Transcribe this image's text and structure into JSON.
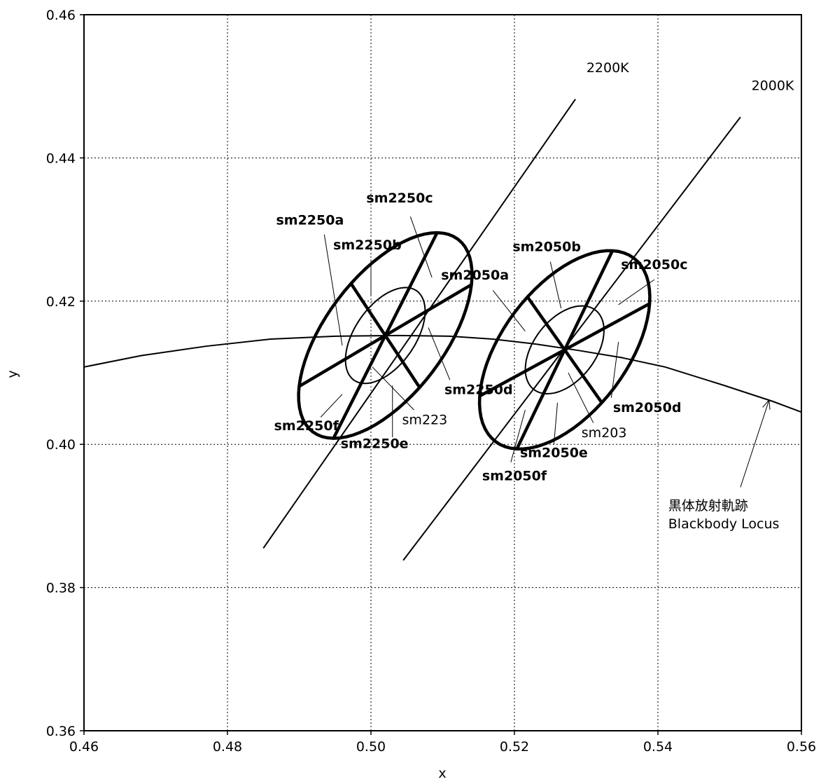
{
  "chart_data": {
    "type": "line",
    "xlabel": "x",
    "ylabel": "y",
    "xlim": [
      0.46,
      0.56
    ],
    "ylim": [
      0.36,
      0.46
    ],
    "grid": true,
    "x_ticks": [
      "0.46",
      "0.48",
      "0.50",
      "0.52",
      "0.54",
      "0.56"
    ],
    "y_ticks": [
      "0.36",
      "0.38",
      "0.40",
      "0.42",
      "0.44",
      "0.46"
    ],
    "blackbody_locus": {
      "x": [
        0.46,
        0.468,
        0.477,
        0.486,
        0.495,
        0.504,
        0.511,
        0.517,
        0.523,
        0.529,
        0.535,
        0.541,
        0.549,
        0.556,
        0.56
      ],
      "y": [
        0.4108,
        0.4124,
        0.4137,
        0.4147,
        0.4151,
        0.4152,
        0.4151,
        0.4147,
        0.414,
        0.4131,
        0.4121,
        0.4108,
        0.4083,
        0.406,
        0.4045
      ]
    },
    "isotherms": [
      {
        "name": "2200K",
        "x1": 0.485,
        "y1": 0.3855,
        "x2": 0.5285,
        "y2": 0.4482
      },
      {
        "name": "2000K",
        "x1": 0.5045,
        "y1": 0.3838,
        "x2": 0.5515,
        "y2": 0.4457
      }
    ],
    "ellipse_groups": [
      {
        "center": [
          0.502,
          0.4152
        ],
        "inner": "sm223",
        "outer": "sm2250",
        "inner_ellipse": {
          "a": 0.0076,
          "b": 0.0042,
          "angle": 55
        },
        "outer_ellipse": {
          "a": 0.0168,
          "b": 0.0083,
          "angle": 53
        },
        "segments": [
          "a",
          "b",
          "c",
          "d",
          "e",
          "f"
        ]
      },
      {
        "center": [
          0.527,
          0.4132
        ],
        "inner": "sm203",
        "outer": "sm2050",
        "inner_ellipse": {
          "a": 0.007,
          "b": 0.0043,
          "angle": 52
        },
        "outer_ellipse": {
          "a": 0.016,
          "b": 0.0087,
          "angle": 53
        },
        "segments": [
          "a",
          "b",
          "c",
          "d",
          "e",
          "f"
        ]
      }
    ],
    "annotations": [
      {
        "text": "sm2250a",
        "bold": true,
        "tx": 0.4915,
        "ty": 0.4307,
        "px1": 0.4935,
        "py1": 0.4293,
        "px2": 0.496,
        "py2": 0.4138
      },
      {
        "text": "sm2250b",
        "bold": true,
        "tx": 0.4995,
        "ty": 0.4272,
        "px1": 0.5,
        "py1": 0.4258,
        "px2": 0.5,
        "py2": 0.4208
      },
      {
        "text": "sm2250c",
        "bold": true,
        "tx": 0.504,
        "ty": 0.4338,
        "px1": 0.5055,
        "py1": 0.4318,
        "px2": 0.5085,
        "py2": 0.4233
      },
      {
        "text": "sm2250d",
        "bold": true,
        "tx": 0.515,
        "ty": 0.407,
        "px1": 0.511,
        "py1": 0.409,
        "px2": 0.508,
        "py2": 0.4163
      },
      {
        "text": "sm2250e",
        "bold": true,
        "tx": 0.5005,
        "ty": 0.3995,
        "px1": 0.503,
        "py1": 0.401,
        "px2": 0.503,
        "py2": 0.4082
      },
      {
        "text": "sm2250f",
        "bold": true,
        "tx": 0.491,
        "ty": 0.402,
        "px1": 0.493,
        "py1": 0.4038,
        "px2": 0.496,
        "py2": 0.407
      },
      {
        "text": "sm223",
        "bold": false,
        "tx": 0.5075,
        "ty": 0.4028,
        "px1": 0.506,
        "py1": 0.4048,
        "px2": 0.5002,
        "py2": 0.4108
      },
      {
        "text": "sm2050a",
        "bold": true,
        "tx": 0.5145,
        "ty": 0.423,
        "px1": 0.517,
        "py1": 0.4215,
        "px2": 0.5215,
        "py2": 0.4158
      },
      {
        "text": "sm2050b",
        "bold": true,
        "tx": 0.5245,
        "ty": 0.427,
        "px1": 0.525,
        "py1": 0.4255,
        "px2": 0.5265,
        "py2": 0.419
      },
      {
        "text": "sm2050c",
        "bold": true,
        "tx": 0.5395,
        "ty": 0.4245,
        "px1": 0.5395,
        "py1": 0.423,
        "px2": 0.5345,
        "py2": 0.4195
      },
      {
        "text": "sm2050d",
        "bold": true,
        "tx": 0.5385,
        "ty": 0.4045,
        "px1": 0.5335,
        "py1": 0.4065,
        "px2": 0.5345,
        "py2": 0.4143
      },
      {
        "text": "sm2050e",
        "bold": true,
        "tx": 0.5255,
        "ty": 0.3982,
        "px1": 0.5255,
        "py1": 0.4,
        "px2": 0.526,
        "py2": 0.4058
      },
      {
        "text": "sm2050f",
        "bold": true,
        "tx": 0.52,
        "ty": 0.395,
        "px1": 0.5195,
        "py1": 0.3975,
        "px2": 0.5215,
        "py2": 0.4048
      },
      {
        "text": "sm203",
        "bold": false,
        "tx": 0.5325,
        "ty": 0.401,
        "px1": 0.531,
        "py1": 0.403,
        "px2": 0.5275,
        "py2": 0.41
      }
    ],
    "line_labels": [
      {
        "text": "2200K",
        "tx": 0.533,
        "ty": 0.452
      },
      {
        "text": "2000K",
        "tx": 0.556,
        "ty": 0.4495
      }
    ],
    "blackbody_label": {
      "line1": "黒体放射軌跡",
      "line2": "Blackbody Locus",
      "tx": 0.551,
      "ty": 0.3908,
      "ax1": 0.5515,
      "ay1": 0.394,
      "ax2": 0.5555,
      "ay2": 0.4062
    }
  }
}
